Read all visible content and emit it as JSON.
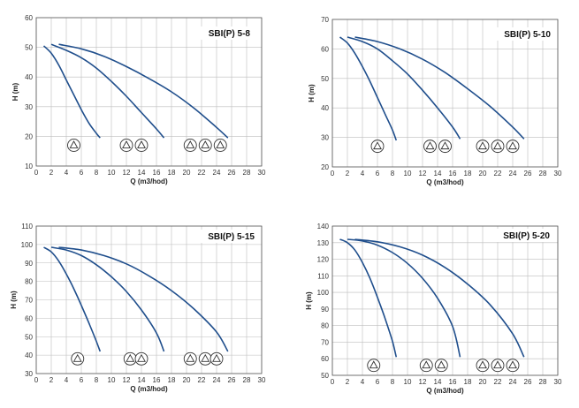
{
  "chart_data": [
    {
      "type": "line",
      "title": "SBI(P) 5-8",
      "xlabel": "Q (m3/hod)",
      "ylabel": "H (m)",
      "xlim": [
        0,
        30
      ],
      "ylim": [
        10,
        60
      ],
      "x_ticks": [
        0,
        2,
        4,
        6,
        8,
        10,
        12,
        14,
        16,
        18,
        20,
        22,
        24,
        26,
        28,
        30
      ],
      "y_ticks": [
        10,
        20,
        30,
        40,
        50,
        60
      ],
      "grid": true,
      "series": [
        {
          "x": [
            1,
            2,
            3,
            4,
            5,
            6,
            7,
            8,
            8.5
          ],
          "y": [
            50.5,
            48,
            44,
            39,
            34,
            29,
            24.5,
            21,
            19.5
          ]
        },
        {
          "x": [
            2,
            4,
            6,
            8,
            10,
            12,
            14,
            16,
            17
          ],
          "y": [
            51,
            49,
            46.5,
            43,
            38.5,
            33.5,
            28,
            22.5,
            19.5
          ]
        },
        {
          "x": [
            3,
            6,
            9,
            12,
            15,
            18,
            21,
            24,
            25.5
          ],
          "y": [
            51,
            49.5,
            47,
            43.5,
            39.5,
            35,
            29.5,
            23,
            19.5
          ]
        }
      ],
      "pump_icons": [
        5,
        12,
        14,
        20.5,
        22.5,
        24.5
      ],
      "pump_icon_level": 17
    },
    {
      "type": "line",
      "title": "SBI(P) 5-10",
      "xlabel": "Q (m3/hod)",
      "ylabel": "H (m)",
      "xlim": [
        0,
        30
      ],
      "ylim": [
        20,
        70
      ],
      "x_ticks": [
        0,
        2,
        4,
        6,
        8,
        10,
        12,
        14,
        16,
        18,
        20,
        22,
        24,
        26,
        28,
        30
      ],
      "y_ticks": [
        20,
        30,
        40,
        50,
        60,
        70
      ],
      "grid": true,
      "series": [
        {
          "x": [
            1,
            2,
            3,
            4,
            5,
            6,
            7,
            8,
            8.5
          ],
          "y": [
            64,
            62,
            58.5,
            54,
            49,
            43.5,
            38,
            32.5,
            29
          ]
        },
        {
          "x": [
            2,
            4,
            6,
            8,
            10,
            12,
            14,
            16,
            17
          ],
          "y": [
            64,
            62.5,
            60,
            56,
            51.5,
            46,
            40,
            33.5,
            29.5
          ]
        },
        {
          "x": [
            3,
            6,
            9,
            12,
            15,
            18,
            21,
            24,
            25.5
          ],
          "y": [
            64,
            62.5,
            60,
            56.5,
            52,
            46.5,
            40.5,
            33.5,
            29.5
          ]
        }
      ],
      "pump_icons": [
        6,
        13,
        15,
        20,
        22,
        24
      ],
      "pump_icon_level": 27
    },
    {
      "type": "line",
      "title": "SBI(P) 5-15",
      "xlabel": "Q (m3/hod)",
      "ylabel": "H (m)",
      "xlim": [
        0,
        30
      ],
      "ylim": [
        30,
        110
      ],
      "x_ticks": [
        0,
        2,
        4,
        6,
        8,
        10,
        12,
        14,
        16,
        18,
        20,
        22,
        24,
        26,
        28,
        30
      ],
      "y_ticks": [
        30,
        40,
        50,
        60,
        70,
        80,
        90,
        100,
        110
      ],
      "grid": true,
      "series": [
        {
          "x": [
            1,
            2,
            3,
            4,
            5,
            6,
            7,
            8,
            8.5
          ],
          "y": [
            98.5,
            96,
            91,
            84,
            76,
            67,
            57.5,
            47.5,
            42
          ]
        },
        {
          "x": [
            2,
            4,
            6,
            8,
            10,
            12,
            14,
            16,
            17
          ],
          "y": [
            98.5,
            97,
            94,
            89,
            82.5,
            74.5,
            64.5,
            52,
            42
          ]
        },
        {
          "x": [
            3,
            6,
            9,
            12,
            15,
            18,
            21,
            24,
            25.5
          ],
          "y": [
            98.5,
            97,
            94,
            89.5,
            83,
            75,
            65,
            52.5,
            42
          ]
        }
      ],
      "pump_icons": [
        5.5,
        12.5,
        14,
        20.5,
        22.5,
        24
      ],
      "pump_icon_level": 38
    },
    {
      "type": "line",
      "title": "SBI(P) 5-20",
      "xlabel": "Q (m3/hod)",
      "ylabel": "H (m)",
      "xlim": [
        0,
        30
      ],
      "ylim": [
        50,
        140
      ],
      "x_ticks": [
        0,
        2,
        4,
        6,
        8,
        10,
        12,
        14,
        16,
        18,
        20,
        22,
        24,
        26,
        28,
        30
      ],
      "y_ticks": [
        50,
        60,
        70,
        80,
        90,
        100,
        110,
        120,
        130,
        140
      ],
      "grid": true,
      "series": [
        {
          "x": [
            1,
            2,
            3,
            4,
            5,
            6,
            7,
            8,
            8.5
          ],
          "y": [
            132,
            130,
            125.5,
            118,
            108.5,
            97,
            84.5,
            70.5,
            61
          ]
        },
        {
          "x": [
            2,
            4,
            6,
            8,
            10,
            12,
            14,
            16,
            17
          ],
          "y": [
            132,
            131,
            128.5,
            124,
            117.5,
            108.5,
            96.5,
            79.5,
            61
          ]
        },
        {
          "x": [
            3,
            6,
            9,
            12,
            15,
            18,
            21,
            24,
            25.5
          ],
          "y": [
            132,
            130.5,
            127.5,
            122.5,
            115,
            105,
            92.5,
            75,
            61
          ]
        }
      ],
      "pump_icons": [
        5.5,
        12.5,
        14.5,
        20,
        22,
        24
      ],
      "pump_icon_level": 56
    }
  ]
}
